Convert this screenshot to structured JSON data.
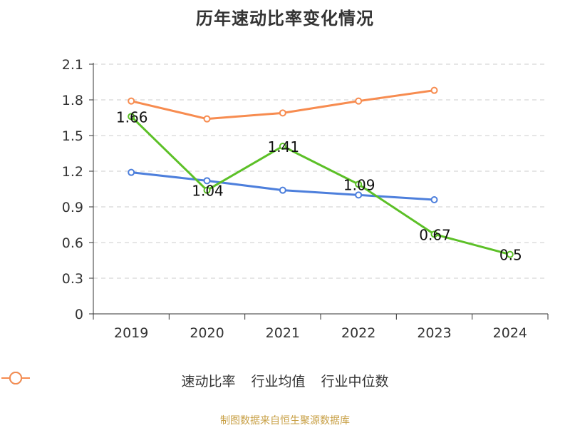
{
  "chart_data": {
    "type": "line",
    "title": "历年速动比率变化情况",
    "categories": [
      "2019",
      "2020",
      "2021",
      "2022",
      "2023",
      "2024"
    ],
    "yticks": [
      "0",
      "0.3",
      "0.6",
      "0.9",
      "1.2",
      "1.5",
      "1.8",
      "2.1"
    ],
    "ylim": [
      0,
      2.1
    ],
    "grid": true,
    "legend_position": "bottom",
    "series": [
      {
        "name": "速动比率",
        "color": "#5cc027",
        "values": [
          1.66,
          1.04,
          1.41,
          1.09,
          0.67,
          0.5
        ],
        "labels": [
          "1.66",
          "1.04",
          "1.41",
          "1.09",
          "0.67",
          "0.5"
        ],
        "show_labels": true
      },
      {
        "name": "行业均值",
        "color": "#4d7fdc",
        "values": [
          1.19,
          1.12,
          1.04,
          1.0,
          0.96,
          null
        ],
        "show_labels": false
      },
      {
        "name": "行业中位数",
        "color": "#f78c50",
        "values": [
          1.79,
          1.64,
          1.69,
          1.79,
          1.88,
          null
        ],
        "show_labels": false
      }
    ]
  },
  "source_text": "制图数据来自恒生聚源数据库"
}
